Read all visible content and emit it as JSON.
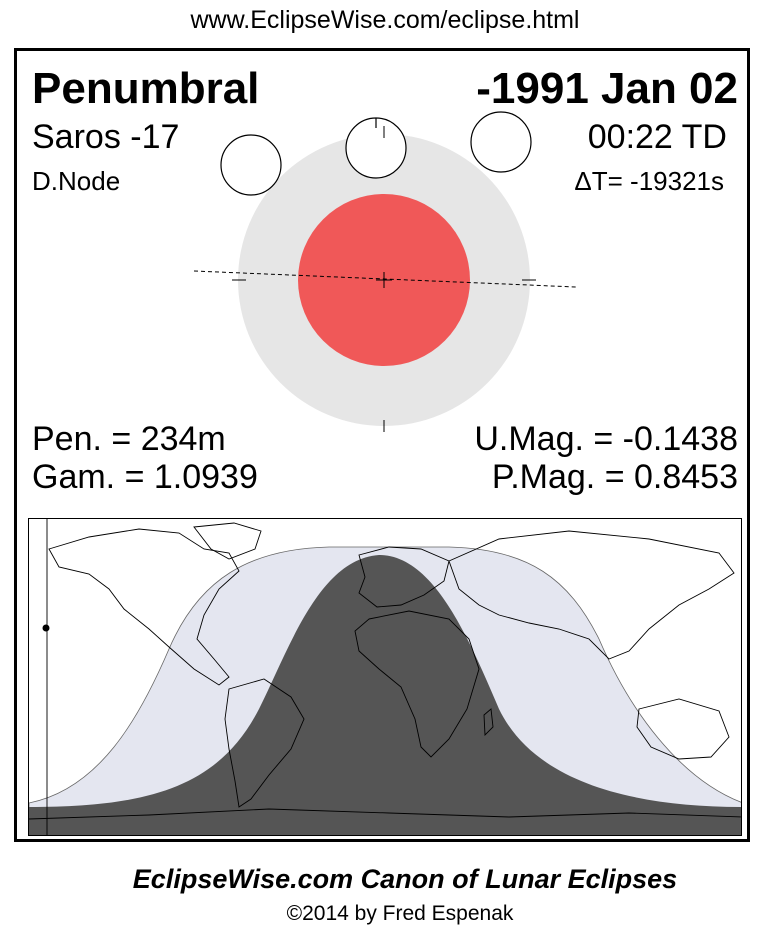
{
  "header": {
    "url": "www.EclipseWise.com/eclipse.html"
  },
  "eclipse": {
    "type": "Penumbral",
    "date": "-1991 Jan 02",
    "saros": "Saros -17",
    "time": "00:22 TD",
    "node": "D.Node",
    "delta_t": "ΔT= -19321s"
  },
  "parameters": {
    "pen": "Pen. = 234m",
    "gam": "Gam. = 1.0939",
    "umag": "U.Mag. = -0.1438",
    "pmag": "P.Mag. = 0.8453"
  },
  "colors": {
    "penumbra": "#e6e6e6",
    "umbra": "#f05858",
    "map_night": "#555555",
    "map_penumbral_zone": "#e4e6f0"
  },
  "footer": {
    "canon": "EclipseWise.com Canon of Lunar Eclipses",
    "copyright": "©2014 by Fred Espenak"
  }
}
